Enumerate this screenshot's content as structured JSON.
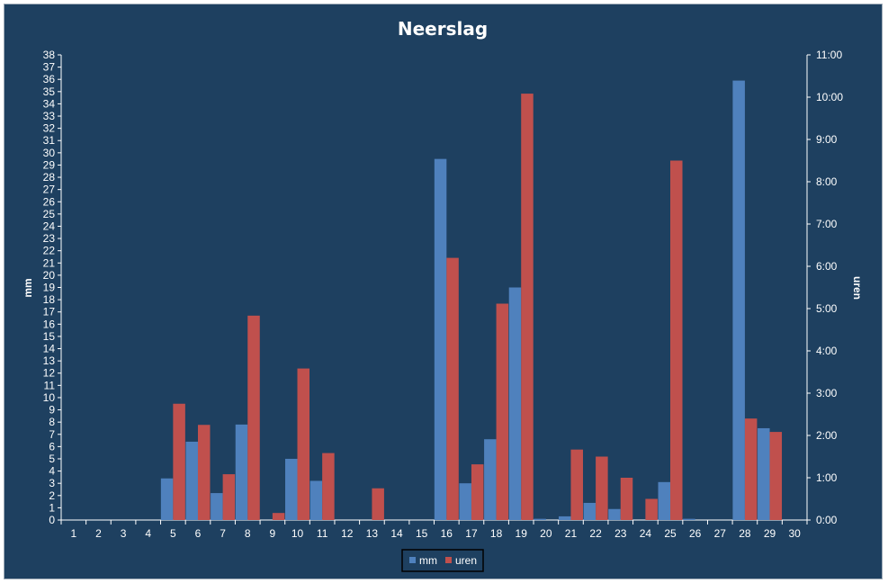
{
  "chart_data": {
    "type": "bar",
    "title": "Neerslag",
    "ylabel": "mm",
    "y2label": "uren",
    "ylim": [
      0,
      38
    ],
    "y2lim_minutes": [
      0,
      660
    ],
    "y2_tick_labels": [
      "0:00",
      "1:00",
      "2:00",
      "3:00",
      "4:00",
      "5:00",
      "6:00",
      "7:00",
      "8:00",
      "9:00",
      "10:00",
      "11:00"
    ],
    "categories": [
      "1",
      "2",
      "3",
      "4",
      "5",
      "6",
      "7",
      "8",
      "9",
      "10",
      "11",
      "12",
      "13",
      "14",
      "15",
      "16",
      "17",
      "18",
      "19",
      "20",
      "21",
      "22",
      "23",
      "24",
      "25",
      "26",
      "27",
      "28",
      "29",
      "30"
    ],
    "series": [
      {
        "name": "mm",
        "axis": "left",
        "color": "#4f81bd",
        "values": [
          0,
          0,
          0,
          0,
          3.4,
          6.4,
          2.2,
          7.8,
          0,
          5.0,
          3.2,
          0,
          0,
          0,
          0,
          29.5,
          3.0,
          6.6,
          19.0,
          0.1,
          0.3,
          1.4,
          0.9,
          0,
          3.1,
          0.1,
          0,
          35.9,
          7.5,
          0
        ]
      },
      {
        "name": "uren",
        "axis": "right",
        "unit": "minutes",
        "color": "#c0504d",
        "values": [
          0,
          0,
          0,
          0,
          165,
          135,
          65,
          290,
          10,
          215,
          95,
          0,
          45,
          0,
          0,
          372,
          79,
          307,
          605,
          0,
          100,
          90,
          60,
          30,
          510,
          0,
          0,
          144,
          125,
          0
        ]
      }
    ],
    "grid": false,
    "legend_position": "bottom"
  }
}
